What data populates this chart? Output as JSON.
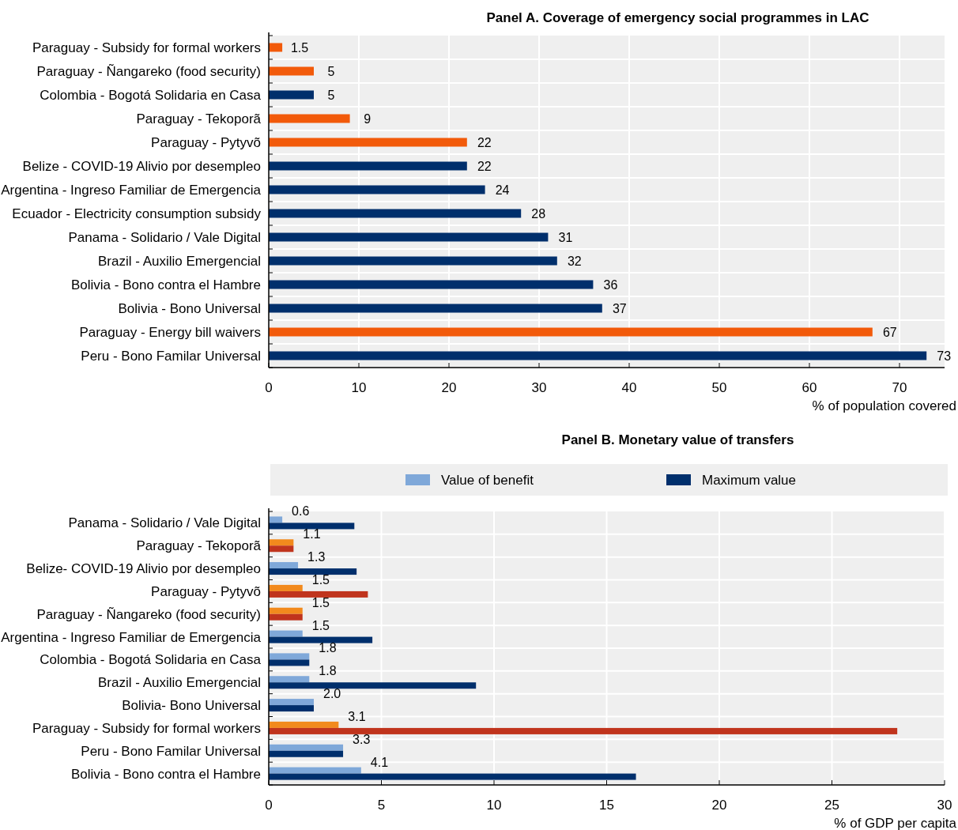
{
  "chart_data": [
    {
      "type": "bar",
      "orientation": "horizontal",
      "title": "Panel A. Coverage of emergency social programmes in LAC",
      "xlabel": "% of population covered",
      "categories": [
        "Paraguay - Subsidy for formal workers",
        "Paraguay - Ñangareko (food security)",
        "Colombia - Bogotá Solidaria en Casa",
        "Paraguay - Tekoporã",
        "Paraguay - Pytyvõ",
        "Belize - COVID-19 Alivio por desempleo ",
        "Argentina - Ingreso Familiar de Emergencia",
        "Ecuador - Electricity consumption subsidy",
        "Panama - Solidario / Vale Digital",
        "Brazil - Auxilio Emergencial",
        "Bolivia - Bono contra el Hambre",
        "Bolivia - Bono Universal",
        "Paraguay - Energy bill waivers",
        "Peru - Bono Familar Universal"
      ],
      "series": [
        {
          "colors": [
            "#f25a0a",
            "#f25a0a",
            "#002f6c",
            "#f25a0a",
            "#f25a0a",
            "#002f6c",
            "#002f6c",
            "#002f6c",
            "#002f6c",
            "#002f6c",
            "#002f6c",
            "#002f6c",
            "#f25a0a",
            "#002f6c"
          ],
          "values": [
            1.5,
            5,
            5,
            9,
            22,
            22,
            24,
            28,
            31,
            32,
            36,
            37,
            67,
            73
          ]
        }
      ],
      "xlim": [
        0,
        75
      ],
      "xticks": [
        0,
        10,
        20,
        30,
        40,
        50,
        60,
        70
      ],
      "grid": "x",
      "data_labels": true
    },
    {
      "type": "bar",
      "orientation": "horizontal",
      "title": "Panel B. Monetary value of transfers",
      "xlabel": "% of GDP per capita",
      "legend": "top",
      "categories": [
        "Panama - Solidario / Vale Digital",
        "Paraguay - Tekoporã",
        "Belize- COVID-19 Alivio por desempleo ",
        "Paraguay - Pytyvõ",
        "Paraguay - Ñangareko (food security)",
        "Argentina - Ingreso Familiar de Emergencia",
        "Colombia - Bogotá Solidaria en Casa",
        "Brazil - Auxilio Emergencial",
        "Bolivia- Bono Universal",
        "Paraguay - Subsidy for formal workers",
        "Peru - Bono Familar Universal",
        "Bolivia - Bono contra el Hambre"
      ],
      "series": [
        {
          "name": "Value of benefit",
          "color": "#7fa8d9",
          "colors": [
            "#7fa8d9",
            "#f28a1d",
            "#7fa8d9",
            "#f28a1d",
            "#f28a1d",
            "#7fa8d9",
            "#7fa8d9",
            "#7fa8d9",
            "#7fa8d9",
            "#f28a1d",
            "#7fa8d9",
            "#7fa8d9"
          ],
          "values": [
            0.6,
            1.1,
            1.3,
            1.5,
            1.5,
            1.5,
            1.8,
            1.8,
            2.0,
            3.1,
            3.3,
            4.1
          ],
          "value_labels": [
            "0.6",
            "1.1",
            "1.3",
            "1.5",
            "1.5",
            "1.5",
            "1.8",
            "1.8",
            "2.0",
            "3.1",
            "3.3",
            "4.1"
          ]
        },
        {
          "name": "Maximum value",
          "color": "#002f6c",
          "colors": [
            "#002f6c",
            "#c0341d",
            "#002f6c",
            "#c0341d",
            "#c0341d",
            "#002f6c",
            "#002f6c",
            "#002f6c",
            "#002f6c",
            "#c0341d",
            "#002f6c",
            "#002f6c"
          ],
          "values": [
            3.8,
            1.1,
            3.9,
            4.4,
            1.5,
            4.6,
            1.8,
            9.2,
            2.0,
            27.9,
            3.3,
            16.3
          ]
        }
      ],
      "xlim": [
        0,
        30
      ],
      "xticks": [
        0,
        5,
        10,
        15,
        20,
        25,
        30
      ],
      "grid": "x"
    }
  ]
}
